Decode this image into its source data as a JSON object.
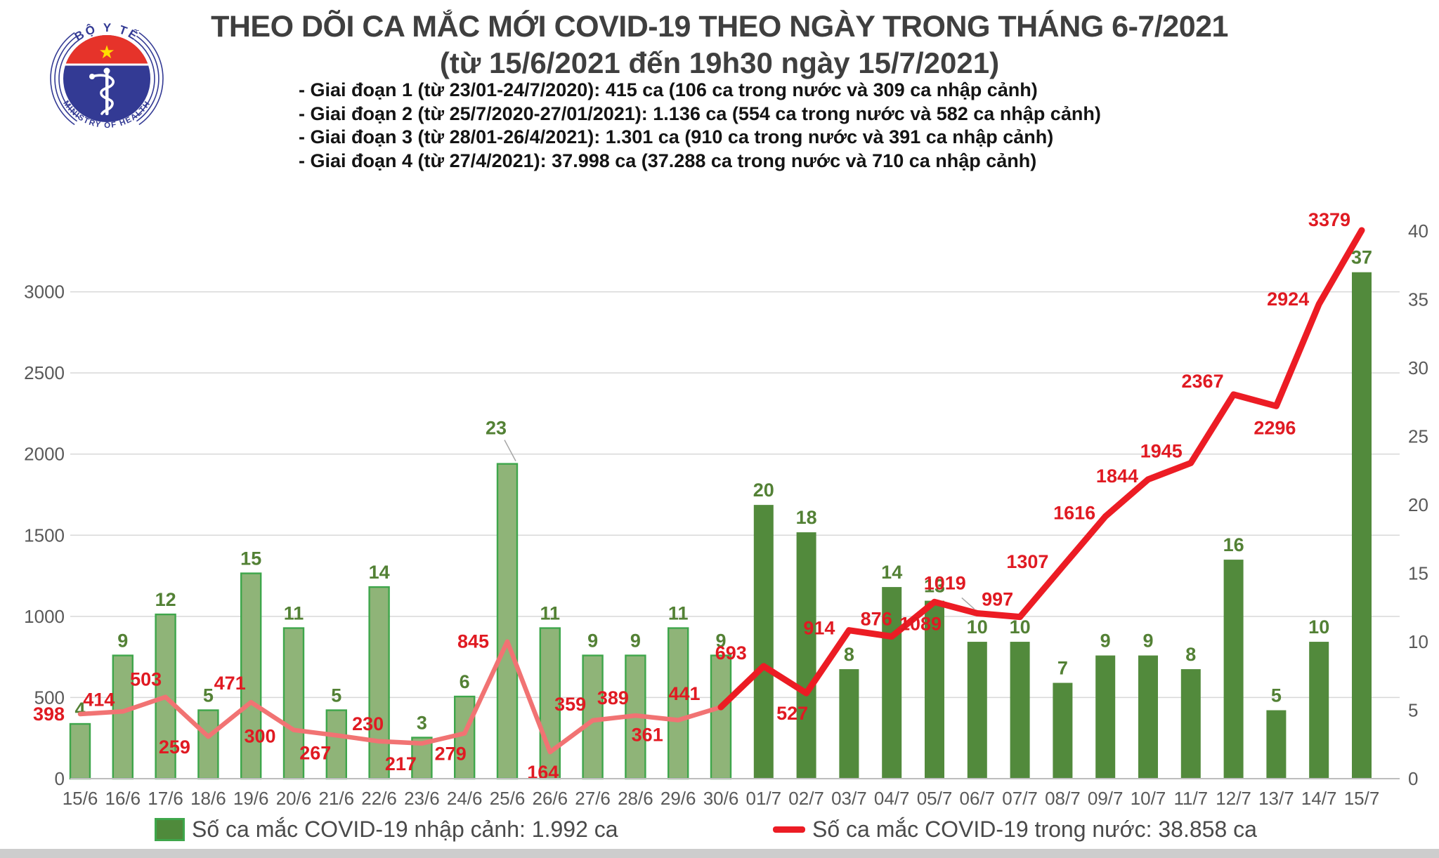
{
  "header": {
    "title": "THEO DÕI CA MẮC MỚI COVID-19 THEO NGÀY TRONG THÁNG 6-7/2021",
    "subtitle": "(từ 15/6/2021 đến 19h30 ngày 15/7/2021)",
    "bullets": [
      "- Giai đoạn 1 (từ 23/01-24/7/2020): 415 ca (106 ca trong nước và 309 ca nhập cảnh)",
      "- Giai đoạn 2 (từ 25/7/2020-27/01/2021): 1.136 ca (554 ca trong nước và 582 ca nhập cảnh)",
      "- Giai đoạn 3 (từ 28/01-26/4/2021): 1.301 ca (910 ca trong nước và 391 ca nhập cảnh)",
      "- Giai đoạn 4 (từ 27/4/2021): 37.998 ca (37.288 ca trong nước và 710 ca nhập cảnh)"
    ]
  },
  "logo": {
    "top_text": "BỘ Y TẾ",
    "bottom_text": "MINISTRY OF HEALTH",
    "colors": {
      "red": "#E6332A",
      "blue": "#333A94",
      "star": "#FFDE00"
    }
  },
  "legend": {
    "bars_label": "Số ca mắc COVID-19 nhập cảnh: 1.992 ca",
    "line_label": "Số ca mắc COVID-19 trong nước: 38.858 ca"
  },
  "chart_data": {
    "type": "bar+line",
    "categories": [
      "15/6",
      "16/6",
      "17/6",
      "18/6",
      "19/6",
      "20/6",
      "21/6",
      "22/6",
      "23/6",
      "24/6",
      "25/6",
      "26/6",
      "27/6",
      "28/6",
      "29/6",
      "30/6",
      "01/7",
      "02/7",
      "03/7",
      "04/7",
      "05/7",
      "06/7",
      "07/7",
      "08/7",
      "09/7",
      "10/7",
      "11/7",
      "12/7",
      "13/7",
      "14/7",
      "15/7"
    ],
    "series": [
      {
        "name": "Số ca mắc COVID-19 nhập cảnh",
        "type": "bar",
        "axis": "right",
        "values": [
          4,
          9,
          12,
          5,
          15,
          11,
          5,
          14,
          3,
          6,
          23,
          11,
          9,
          9,
          11,
          9,
          20,
          18,
          8,
          14,
          13,
          10,
          10,
          7,
          9,
          9,
          8,
          16,
          5,
          10,
          37
        ]
      },
      {
        "name": "Số ca mắc COVID-19 trong nước",
        "type": "line",
        "axis": "left",
        "values": [
          398,
          414,
          503,
          259,
          471,
          300,
          267,
          230,
          217,
          279,
          845,
          164,
          359,
          389,
          361,
          441,
          693,
          527,
          914,
          876,
          1089,
          1019,
          997,
          1307,
          1616,
          1844,
          1945,
          2367,
          2296,
          2924,
          3379
        ]
      }
    ],
    "left_axis": {
      "ticks": [
        0,
        500,
        1000,
        1500,
        2000,
        2500,
        3000
      ],
      "max": 3500
    },
    "right_axis": {
      "ticks": [
        0,
        5,
        10,
        15,
        20,
        25,
        30,
        35,
        40
      ],
      "max": 41.5
    },
    "grid": "horizontal-left-axis",
    "legend_position": "bottom",
    "colors": {
      "bar_june_fill": "#8FB478",
      "bar_june_border": "#3EA64B",
      "bar_july_fill": "#528A3C",
      "line_early": "#F17373",
      "line_main": "#EC1C24",
      "bar_label": "#538135",
      "line_label": "#E01A22",
      "axis_text": "#595959",
      "gridline": "#D8D8D8",
      "baseline": "#BDBDBD",
      "leader": "#A6A6A6"
    }
  }
}
